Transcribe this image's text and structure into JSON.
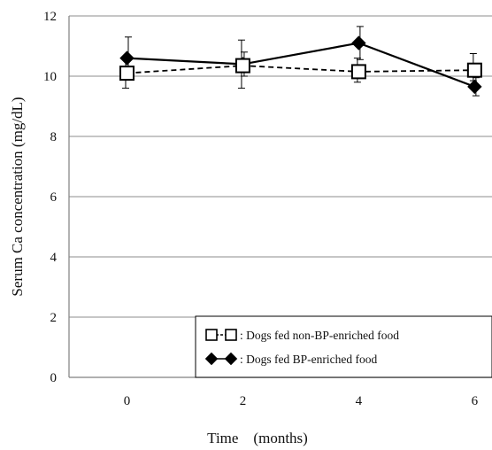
{
  "chart_data": {
    "type": "line",
    "xlabel": "Time　(months)",
    "ylabel": "Serum Ca concentration (mg/dL)",
    "x": [
      0,
      2,
      4,
      6
    ],
    "x_tick_labels": [
      "0",
      "2",
      "4",
      "6"
    ],
    "y_tick_labels": [
      "0",
      "2",
      "4",
      "6",
      "8",
      "10",
      "12"
    ],
    "ylim": [
      0,
      12
    ],
    "xlim": [
      -1,
      6.3
    ],
    "grid": "horizontal",
    "legend_position": "bottom-right",
    "series": [
      {
        "name": ": Dogs fed non-BP-enriched food",
        "marker": "open-square",
        "line_style": "dashed",
        "values": [
          10.1,
          10.35,
          10.15,
          10.2
        ],
        "err_low": [
          0.5,
          0.75,
          0.35,
          0.35
        ],
        "err_high": [
          0.5,
          0.85,
          0.45,
          0.55
        ]
      },
      {
        "name": ": Dogs fed BP-enriched food",
        "marker": "filled-diamond",
        "line_style": "solid",
        "values": [
          10.6,
          10.4,
          11.1,
          9.65
        ],
        "err_low": [
          0.5,
          0.4,
          0.55,
          0.3
        ],
        "err_high": [
          0.7,
          0.4,
          0.55,
          0.3
        ]
      }
    ],
    "colors": {
      "line": "#000000",
      "grid": "#8c8c8c",
      "axis": "#808080"
    }
  }
}
